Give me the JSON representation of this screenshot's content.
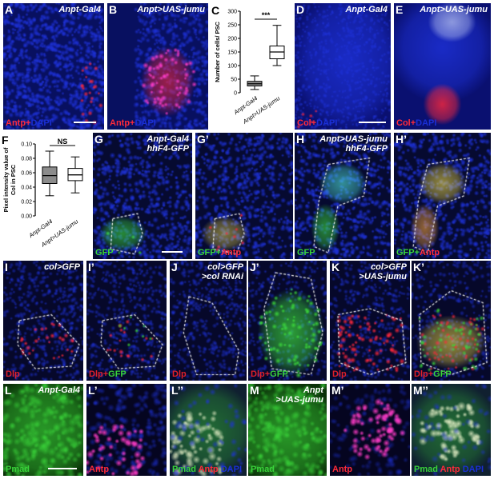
{
  "colors": {
    "dapi": "#1a2fd6",
    "antp": "#ff2b3a",
    "gfp": "#39d43a",
    "dlp": "#e0202a",
    "col": "#ff2b3a"
  },
  "panels": {
    "A": {
      "label": "A",
      "title": "Anpt-Gal4",
      "stain": [
        "Antp+",
        "DAPI"
      ]
    },
    "B": {
      "label": "B",
      "title": "Anpt>UAS-jumu",
      "stain": [
        "Antp+",
        "DAPI"
      ]
    },
    "D": {
      "label": "D",
      "title": "Anpt-Gal4",
      "stain": [
        "Col+",
        "DAPI"
      ]
    },
    "E": {
      "label": "E",
      "title": "Anpt>UAS-jumu",
      "stain": [
        "Col+",
        "DAPI"
      ]
    },
    "G": {
      "label": "G",
      "title": "Anpt-Gal4\nhhF4-GFP",
      "stain": [
        "GFP"
      ]
    },
    "G2": {
      "label": "G’",
      "title": "",
      "stain": [
        "GFP+",
        "Antp"
      ]
    },
    "H": {
      "label": "H",
      "title": "Anpt>UAS-jumu\nhhF4-GFP",
      "stain": [
        "GFP"
      ]
    },
    "H2": {
      "label": "H’",
      "title": "",
      "stain": [
        "GFP+",
        "Antp"
      ]
    },
    "I": {
      "label": "I",
      "title": "col>GFP",
      "stain": [
        "Dlp"
      ]
    },
    "I2": {
      "label": "I’",
      "title": "",
      "stain": [
        "Dlp+",
        "GFP"
      ]
    },
    "J": {
      "label": "J",
      "title": "col>GFP\n>col RNAi",
      "stain": [
        "Dlp"
      ]
    },
    "J2": {
      "label": "J’",
      "title": "",
      "stain": [
        "Dlp+",
        "GFP"
      ]
    },
    "K": {
      "label": "K",
      "title": "col>GFP\n>UAS-jumu",
      "stain": [
        "Dlp"
      ]
    },
    "K2": {
      "label": "K’",
      "title": "",
      "stain": [
        "Dlp+",
        "GFP"
      ]
    },
    "L": {
      "label": "L",
      "title": "Anpt-Gal4",
      "stain": [
        "Pmad"
      ]
    },
    "L2": {
      "label": "L’",
      "title": "",
      "stain": [
        "Antp"
      ]
    },
    "L3": {
      "label": "L’’",
      "title": "",
      "stain": [
        "Pmad",
        "Antp",
        "DAPI"
      ]
    },
    "M": {
      "label": "M",
      "title": "Anpt\n>UAS-jumu",
      "stain": [
        "Pmad"
      ]
    },
    "M2": {
      "label": "M’",
      "title": "",
      "stain": [
        "Antp"
      ]
    },
    "M3": {
      "label": "M’’",
      "title": "",
      "stain": [
        "Pmad",
        "Antp",
        "DAPI"
      ]
    }
  },
  "chart_C": {
    "label": "C",
    "type": "box",
    "ylabel": "Number of cells/ PSC",
    "yticks": [
      0,
      50,
      100,
      150,
      200,
      250,
      300
    ],
    "ylim": [
      0,
      300
    ],
    "categories": [
      "Anpt-Gal4",
      "Anpt>UAS-jumu"
    ],
    "boxes": [
      {
        "min": 12,
        "q1": 25,
        "median": 33,
        "q3": 42,
        "max": 62,
        "fill": "#8c8c8c"
      },
      {
        "min": 100,
        "q1": 125,
        "median": 150,
        "q3": 172,
        "max": 248,
        "fill": "#ffffff"
      }
    ],
    "significance": "***"
  },
  "chart_F": {
    "label": "F",
    "type": "box",
    "ylabel": "Pixel intensity value of\nCol in PSC",
    "yticks": [
      0.0,
      0.02,
      0.04,
      0.06,
      0.08,
      0.1
    ],
    "ylim": [
      0,
      0.1
    ],
    "categories": [
      "Anpt-Gal4",
      "Anpt>UAS-jumu"
    ],
    "boxes": [
      {
        "min": 0.028,
        "q1": 0.045,
        "median": 0.056,
        "q3": 0.068,
        "max": 0.09,
        "fill": "#8c8c8c"
      },
      {
        "min": 0.032,
        "q1": 0.049,
        "median": 0.057,
        "q3": 0.066,
        "max": 0.082,
        "fill": "#ffffff"
      }
    ],
    "significance": "NS"
  }
}
